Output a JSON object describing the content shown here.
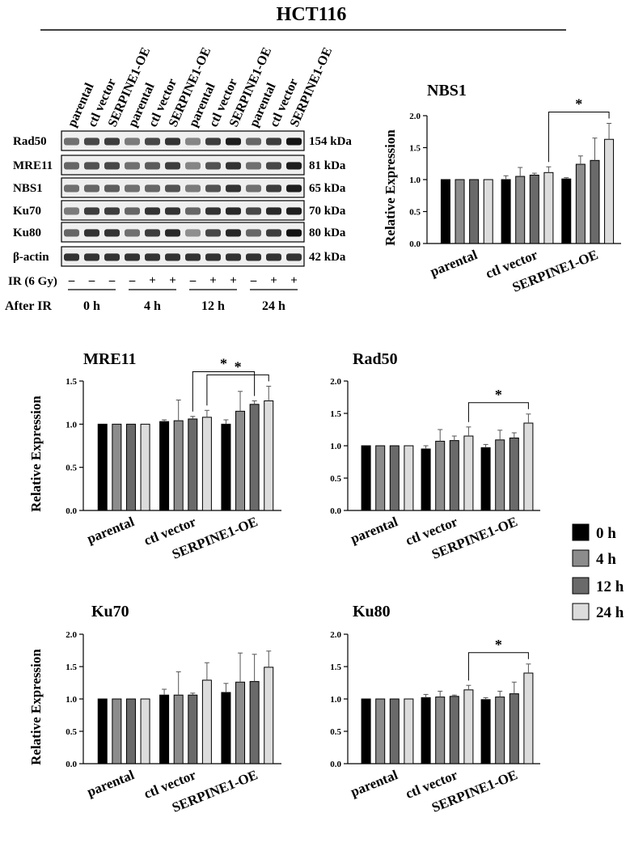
{
  "figure_title": "HCT116",
  "blot": {
    "lanes": [
      "parental",
      "ctl vector",
      "SERPINE1-OE",
      "parental",
      "ctl vector",
      "SERPINE1-OE",
      "parental",
      "ctl vector",
      "SERPINE1-OE",
      "parental",
      "ctl vector",
      "SERPINE1-OE"
    ],
    "rows": [
      {
        "protein": "Rad50",
        "kda": "154 kDa",
        "intensity": [
          0.55,
          0.75,
          0.8,
          0.5,
          0.75,
          0.85,
          0.45,
          0.8,
          0.95,
          0.6,
          0.8,
          1.0
        ]
      },
      {
        "protein": "MRE11",
        "kda": "81 kDa",
        "intensity": [
          0.6,
          0.7,
          0.75,
          0.55,
          0.65,
          0.8,
          0.45,
          0.7,
          0.85,
          0.55,
          0.75,
          0.95
        ]
      },
      {
        "protein": "NBS1",
        "kda": "65 kDa",
        "intensity": [
          0.55,
          0.6,
          0.65,
          0.55,
          0.6,
          0.7,
          0.5,
          0.7,
          0.85,
          0.55,
          0.8,
          0.95
        ]
      },
      {
        "protein": "Ku70",
        "kda": "70 kDa",
        "intensity": [
          0.5,
          0.8,
          0.8,
          0.6,
          0.85,
          0.85,
          0.6,
          0.85,
          0.9,
          0.75,
          0.9,
          0.95
        ]
      },
      {
        "protein": "Ku80",
        "kda": "80 kDa",
        "intensity": [
          0.6,
          0.85,
          0.85,
          0.55,
          0.8,
          0.9,
          0.4,
          0.75,
          0.9,
          0.6,
          0.8,
          1.0
        ]
      },
      {
        "protein": "β-actin",
        "kda": "42 kDa",
        "intensity": [
          0.85,
          0.85,
          0.85,
          0.85,
          0.85,
          0.85,
          0.85,
          0.85,
          0.85,
          0.85,
          0.85,
          0.85
        ]
      }
    ],
    "ir_label": "IR (6 Gy)",
    "ir_marks": [
      "–",
      "–",
      "–",
      "–",
      "+",
      "+",
      "–",
      "+",
      "+",
      "–",
      "+",
      "+"
    ],
    "after_ir_label": "After IR",
    "time_groups": [
      "0 h",
      "4 h",
      "12 h",
      "24 h"
    ]
  },
  "legend": {
    "items": [
      {
        "label": "0 h",
        "color": "#000000"
      },
      {
        "label": "4 h",
        "color": "#8c8c8c"
      },
      {
        "label": "12 h",
        "color": "#6a6a6a"
      },
      {
        "label": "24 h",
        "color": "#dcdcdc"
      }
    ]
  },
  "chart_data": [
    {
      "type": "bar",
      "title": "NBS1",
      "ylabel": "Relative Expression",
      "ylim": [
        0,
        2.0
      ],
      "yticks": [
        "0.0",
        "0.5",
        "1.0",
        "1.5",
        "2.0"
      ],
      "categories": [
        "parental",
        "ctl vector",
        "SERPINE1-OE"
      ],
      "series": [
        {
          "name": "0 h",
          "values": [
            1.0,
            1.0,
            1.01
          ],
          "errors": [
            0,
            0.06,
            0.02
          ]
        },
        {
          "name": "4 h",
          "values": [
            1.0,
            1.05,
            1.24
          ],
          "errors": [
            0,
            0.14,
            0.13
          ]
        },
        {
          "name": "12 h",
          "values": [
            1.0,
            1.07,
            1.3
          ],
          "errors": [
            0,
            0.03,
            0.35
          ]
        },
        {
          "name": "24 h",
          "values": [
            1.0,
            1.11,
            1.63
          ],
          "errors": [
            0,
            0.09,
            0.25
          ]
        }
      ],
      "significance": [
        {
          "from": [
            1,
            3
          ],
          "to": [
            2,
            3
          ],
          "label": "*"
        }
      ]
    },
    {
      "type": "bar",
      "title": "MRE11",
      "ylabel": "Relative Expression",
      "ylim": [
        0,
        1.5
      ],
      "yticks": [
        "0.0",
        "0.5",
        "1.0",
        "1.5"
      ],
      "categories": [
        "parental",
        "ctl vector",
        "SERPINE1-OE"
      ],
      "series": [
        {
          "name": "0 h",
          "values": [
            1.0,
            1.03,
            1.0
          ],
          "errors": [
            0,
            0.02,
            0.05
          ]
        },
        {
          "name": "4 h",
          "values": [
            1.0,
            1.04,
            1.15
          ],
          "errors": [
            0,
            0.24,
            0.23
          ]
        },
        {
          "name": "12 h",
          "values": [
            1.0,
            1.06,
            1.23
          ],
          "errors": [
            0,
            0.03,
            0.04
          ]
        },
        {
          "name": "24 h",
          "values": [
            1.0,
            1.08,
            1.27
          ],
          "errors": [
            0,
            0.08,
            0.17
          ]
        }
      ],
      "significance": [
        {
          "from": [
            1,
            3
          ],
          "to": [
            2,
            3
          ],
          "label": "*"
        },
        {
          "from": [
            1,
            2
          ],
          "to": [
            2,
            2
          ],
          "label": "*"
        }
      ]
    },
    {
      "type": "bar",
      "title": "Rad50",
      "ylabel": "",
      "ylim": [
        0,
        2.0
      ],
      "yticks": [
        "0.0",
        "0.5",
        "1.0",
        "1.5",
        "2.0"
      ],
      "categories": [
        "parental",
        "ctl vector",
        "SERPINE1-OE"
      ],
      "series": [
        {
          "name": "0 h",
          "values": [
            1.0,
            0.95,
            0.97
          ],
          "errors": [
            0,
            0.05,
            0.05
          ]
        },
        {
          "name": "4 h",
          "values": [
            1.0,
            1.07,
            1.09
          ],
          "errors": [
            0,
            0.18,
            0.15
          ]
        },
        {
          "name": "12 h",
          "values": [
            1.0,
            1.08,
            1.12
          ],
          "errors": [
            0,
            0.07,
            0.08
          ]
        },
        {
          "name": "24 h",
          "values": [
            1.0,
            1.15,
            1.35
          ],
          "errors": [
            0,
            0.14,
            0.14
          ]
        }
      ],
      "significance": [
        {
          "from": [
            1,
            3
          ],
          "to": [
            2,
            3
          ],
          "label": "*"
        }
      ]
    },
    {
      "type": "bar",
      "title": "Ku70",
      "ylabel": "Relative Expression",
      "ylim": [
        0,
        2.0
      ],
      "yticks": [
        "0.0",
        "0.5",
        "1.0",
        "1.5",
        "2.0"
      ],
      "categories": [
        "parental",
        "ctl vector",
        "SERPINE1-OE"
      ],
      "series": [
        {
          "name": "0 h",
          "values": [
            1.0,
            1.06,
            1.1
          ],
          "errors": [
            0,
            0.09,
            0.14
          ]
        },
        {
          "name": "4 h",
          "values": [
            1.0,
            1.06,
            1.26
          ],
          "errors": [
            0,
            0.36,
            0.45
          ]
        },
        {
          "name": "12 h",
          "values": [
            1.0,
            1.06,
            1.27
          ],
          "errors": [
            0,
            0.03,
            0.42
          ]
        },
        {
          "name": "24 h",
          "values": [
            1.0,
            1.29,
            1.49
          ],
          "errors": [
            0,
            0.27,
            0.25
          ]
        }
      ],
      "significance": []
    },
    {
      "type": "bar",
      "title": "Ku80",
      "ylabel": "",
      "ylim": [
        0,
        2.0
      ],
      "yticks": [
        "0.0",
        "0.5",
        "1.0",
        "1.5",
        "2.0"
      ],
      "categories": [
        "parental",
        "ctl vector",
        "SERPINE1-OE"
      ],
      "series": [
        {
          "name": "0 h",
          "values": [
            1.0,
            1.02,
            0.99
          ],
          "errors": [
            0,
            0.05,
            0.03
          ]
        },
        {
          "name": "4 h",
          "values": [
            1.0,
            1.03,
            1.03
          ],
          "errors": [
            0,
            0.09,
            0.09
          ]
        },
        {
          "name": "12 h",
          "values": [
            1.0,
            1.04,
            1.08
          ],
          "errors": [
            0,
            0.02,
            0.18
          ]
        },
        {
          "name": "24 h",
          "values": [
            1.0,
            1.14,
            1.4
          ],
          "errors": [
            0,
            0.07,
            0.14
          ]
        }
      ],
      "significance": [
        {
          "from": [
            1,
            3
          ],
          "to": [
            2,
            3
          ],
          "label": "*"
        }
      ]
    }
  ]
}
